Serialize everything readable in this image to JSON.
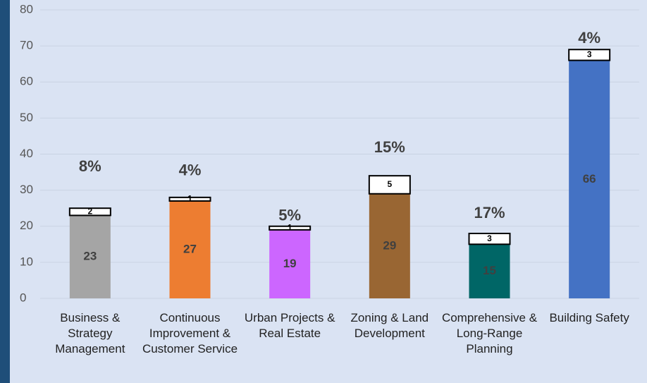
{
  "chart_data": {
    "type": "stacked_bar",
    "categories": [
      "Business & Strategy Management",
      "Continuous Improvement & Customer Service",
      "Urban Projects & Real Estate",
      "Zoning & Land Development",
      "Comprehensive & Long-Range Planning",
      "Building Safety"
    ],
    "series": [
      {
        "colors": [
          "#a5a5a5",
          "#ed7d31",
          "#cc66ff",
          "#996633",
          "#006666",
          "#4472c4"
        ],
        "values": [
          23,
          27,
          19,
          29,
          15,
          66
        ]
      },
      {
        "color": "#ffffff",
        "values": [
          2,
          1,
          1,
          5,
          3,
          3
        ]
      }
    ],
    "annotations": [
      "8%",
      "4%",
      "5%",
      "15%",
      "17%",
      "4%"
    ],
    "ylim": [
      0,
      80
    ],
    "yticks": [
      0,
      10,
      20,
      30,
      40,
      50,
      60,
      70,
      80
    ],
    "grid": true
  }
}
